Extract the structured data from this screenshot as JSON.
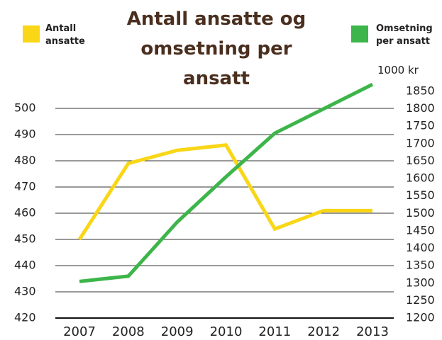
{
  "chart_data": {
    "type": "line",
    "title": "Antall ansatte og omsetning per ansatt",
    "y2_label": "1000 kr",
    "categories": [
      "2007",
      "2008",
      "2009",
      "2010",
      "2011",
      "2012",
      "2013"
    ],
    "series": [
      {
        "name": "Antall ansatte",
        "color": "#f9d616",
        "values": [
          450,
          479,
          484,
          486,
          454,
          461,
          461
        ]
      },
      {
        "name": "Omsetning per ansatt",
        "color": "#3db54a",
        "axis": "y2",
        "values": [
          1305,
          1320,
          1475,
          1605,
          1730,
          1800,
          1870
        ]
      }
    ],
    "ylim": [
      420,
      506.5
    ],
    "yticks": [
      420,
      430,
      440,
      450,
      460,
      470,
      480,
      490,
      500
    ],
    "y2lim": [
      1200,
      1850
    ],
    "y2ticks": [
      1200,
      1250,
      1300,
      1350,
      1400,
      1450,
      1500,
      1550,
      1600,
      1650,
      1700,
      1750,
      1800,
      1850
    ],
    "grid": true
  }
}
